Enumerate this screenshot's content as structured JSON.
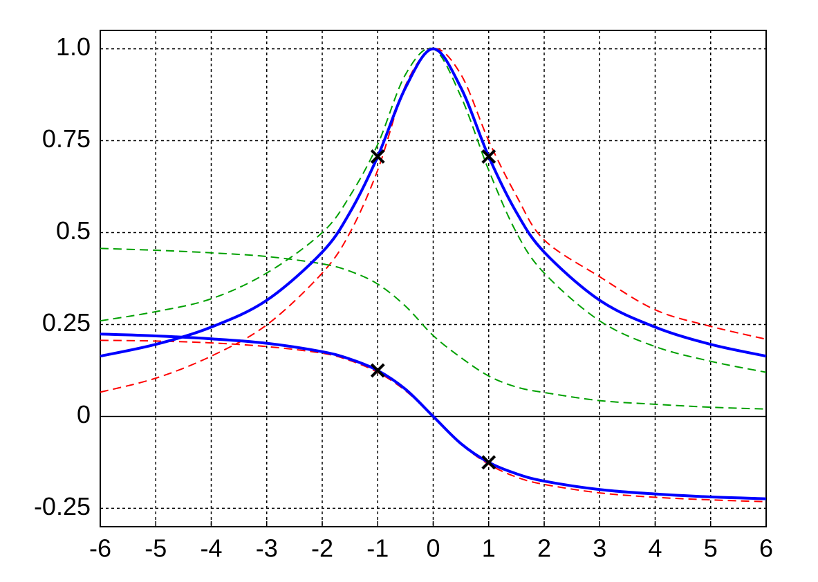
{
  "chart_data": {
    "type": "line",
    "x": [
      -6,
      -5,
      -4,
      -3,
      -2,
      -1.5,
      -1,
      -0.5,
      0,
      0.5,
      1,
      1.5,
      2,
      3,
      4,
      5,
      6
    ],
    "series": [
      {
        "color": "#ff0000",
        "dash": true,
        "values": [
          0.066,
          0.104,
          0.164,
          0.249,
          0.39,
          0.5,
          0.67,
          0.9,
          1,
          0.93,
          0.75,
          0.6,
          0.48,
          0.38,
          0.29,
          0.245,
          0.21
        ]
      },
      {
        "color": "#ff0000",
        "dash": true,
        "values": [
          0.207,
          0.205,
          0.2,
          0.19,
          0.172,
          0.152,
          0.12,
          0.07,
          0,
          -0.075,
          -0.13,
          -0.165,
          -0.185,
          -0.208,
          -0.22,
          -0.227,
          -0.232
        ]
      },
      {
        "color": "#00a000",
        "dash": true,
        "values": [
          0.26,
          0.285,
          0.32,
          0.39,
          0.5,
          0.6,
          0.74,
          0.93,
          1,
          0.87,
          0.67,
          0.5,
          0.39,
          0.26,
          0.19,
          0.15,
          0.12
        ]
      },
      {
        "color": "#00a000",
        "dash": true,
        "values": [
          0.457,
          0.452,
          0.445,
          0.435,
          0.415,
          0.395,
          0.36,
          0.3,
          0.22,
          0.16,
          0.11,
          0.08,
          0.065,
          0.043,
          0.033,
          0.025,
          0.02
        ]
      },
      {
        "color": "#0000ff",
        "dash": false,
        "values": [
          0.164,
          0.196,
          0.243,
          0.316,
          0.447,
          0.555,
          0.707,
          0.894,
          1,
          0.894,
          0.707,
          0.555,
          0.447,
          0.316,
          0.243,
          0.196,
          0.164
        ]
      },
      {
        "color": "#0000ff",
        "dash": false,
        "values": [
          0.224,
          0.219,
          0.211,
          0.199,
          0.176,
          0.156,
          0.125,
          0.074,
          0,
          -0.074,
          -0.125,
          -0.156,
          -0.176,
          -0.199,
          -0.211,
          -0.219,
          -0.224
        ]
      }
    ],
    "markers": {
      "x": [
        -1,
        1,
        -1,
        1
      ],
      "y": [
        0.707,
        0.707,
        0.125,
        -0.125
      ],
      "color": "#000000"
    },
    "xlim": [
      -6,
      6
    ],
    "xticks": [
      -6,
      -5,
      -4,
      -3,
      -2,
      -1,
      0,
      1,
      2,
      3,
      4,
      5,
      6
    ],
    "ylim": [
      -0.3,
      1.05
    ],
    "yticks": [
      -0.25,
      0,
      0.25,
      0.5,
      0.75,
      {
        "value": 1,
        "label": "1.0"
      }
    ],
    "grid": true
  }
}
